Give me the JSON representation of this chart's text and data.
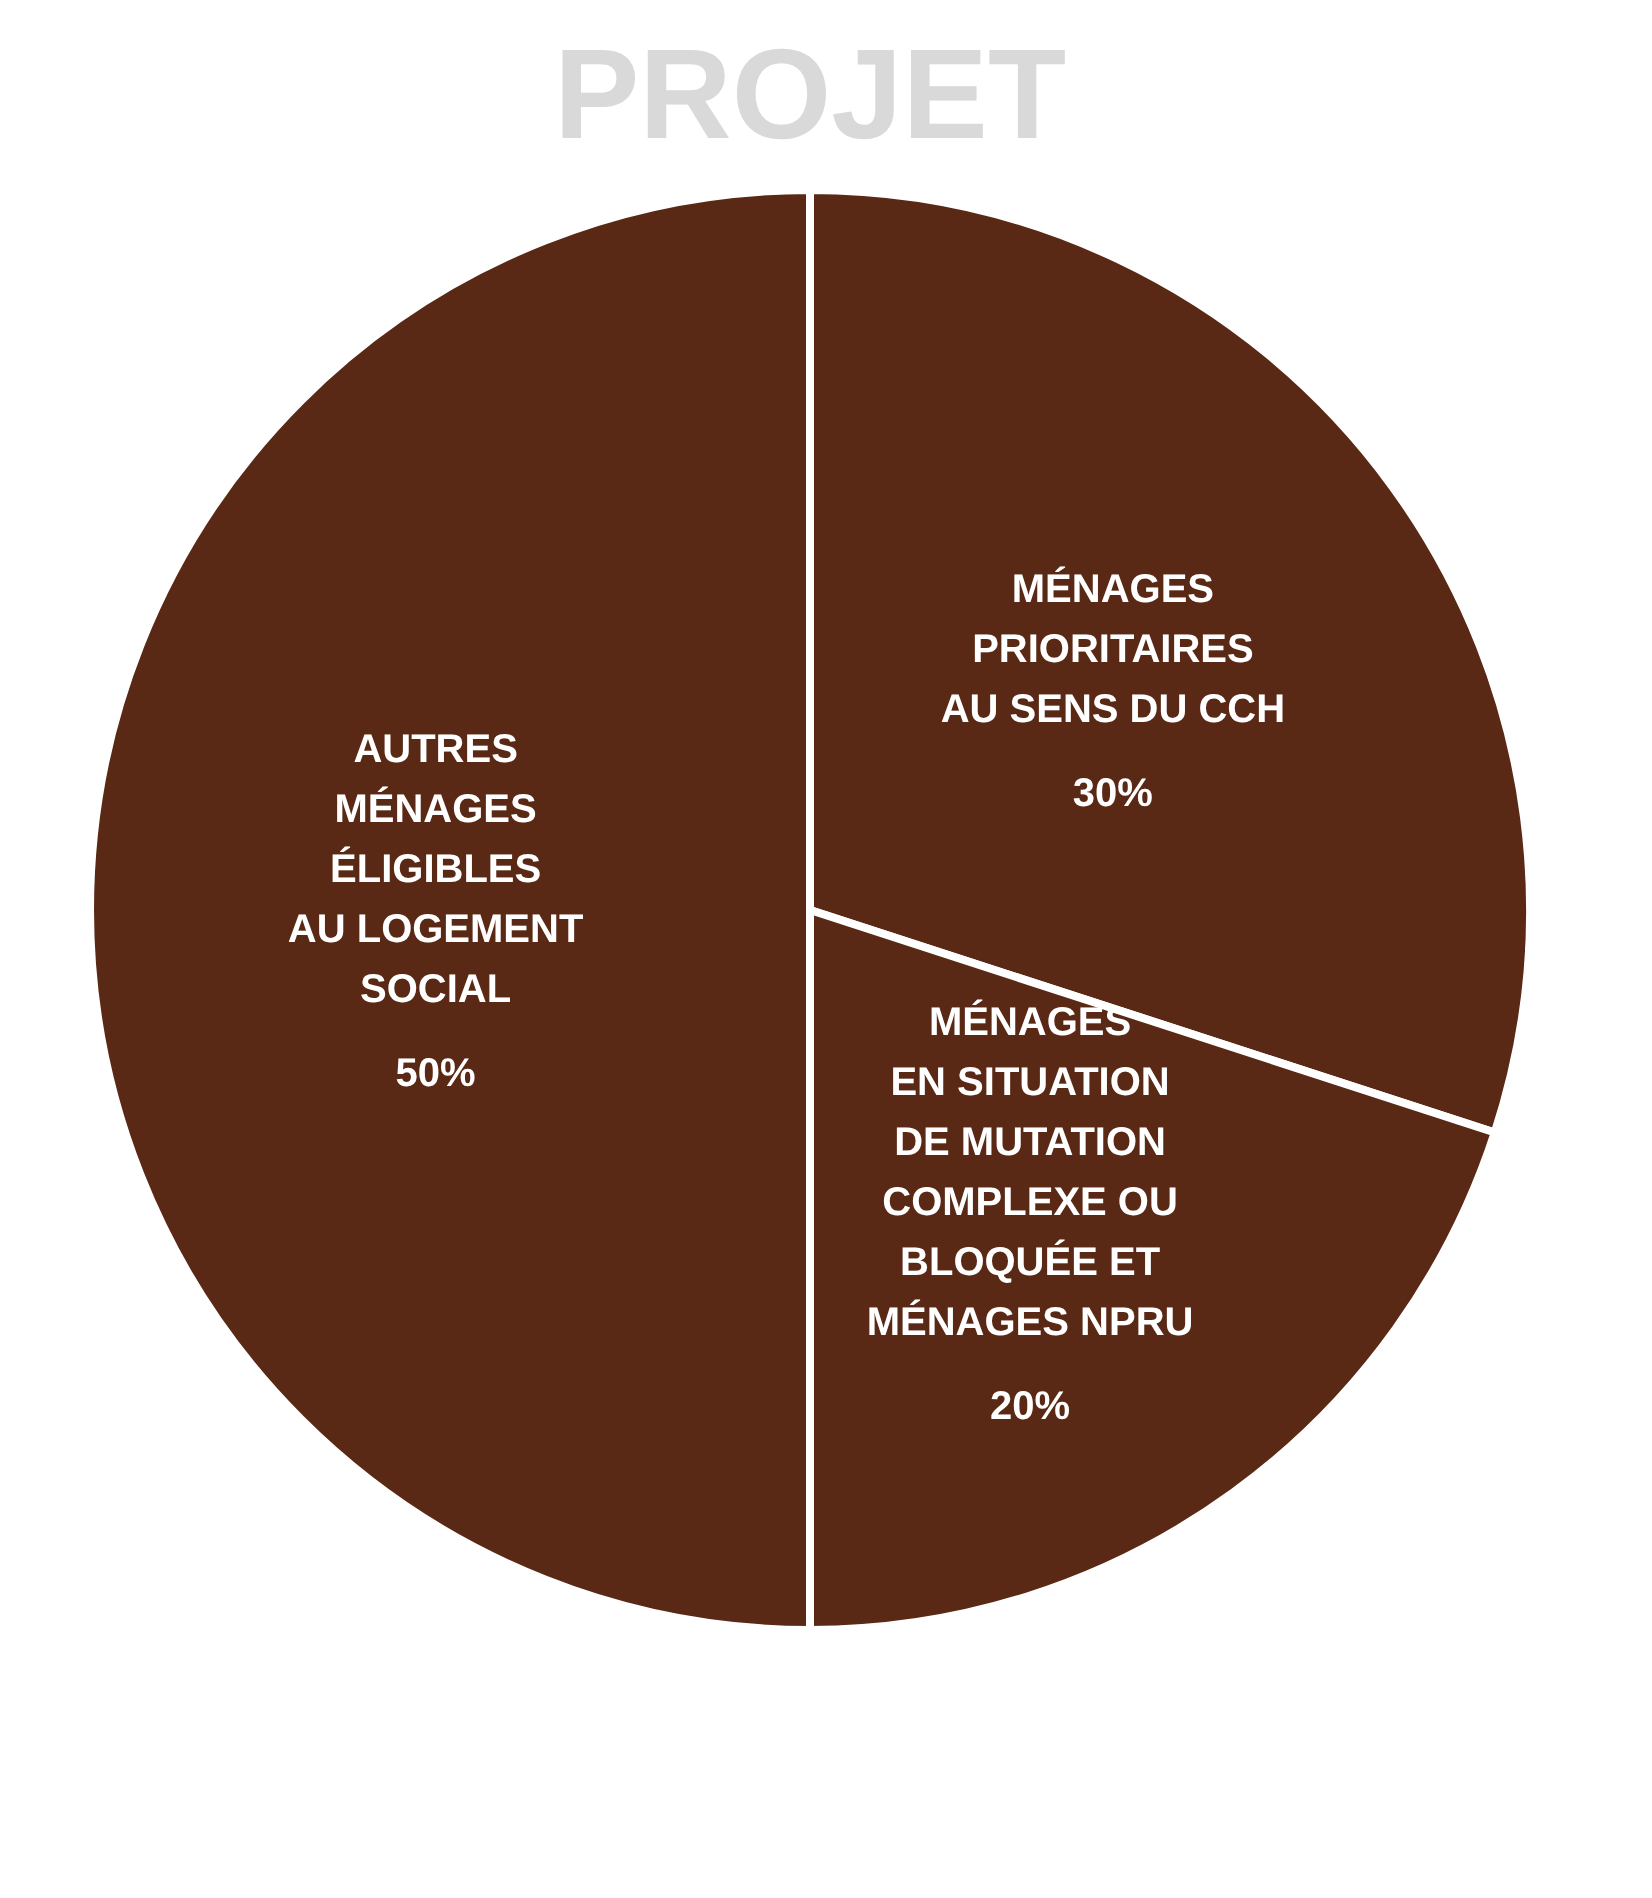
{
  "chart_data": {
    "type": "pie",
    "categories": [
      "MÉNAGES\nPRIORITAIRES\nAU SENS DU CCH",
      "MÉNAGES\nEN SITUATION\nDE MUTATION\nCOMPLEXE OU\nBLOQUÉE ET\nMÉNAGES NPRU",
      "AUTRES\nMÉNAGES\nÉLIGIBLES\nAU LOGEMENT\nSOCIAL"
    ],
    "values": [
      30,
      20,
      50
    ],
    "value_labels": [
      "30%",
      "20%",
      "50%"
    ],
    "colors": [
      "#5a2915",
      "#5a2915",
      "#5a2915"
    ],
    "annotations": [
      "PROJET"
    ]
  }
}
